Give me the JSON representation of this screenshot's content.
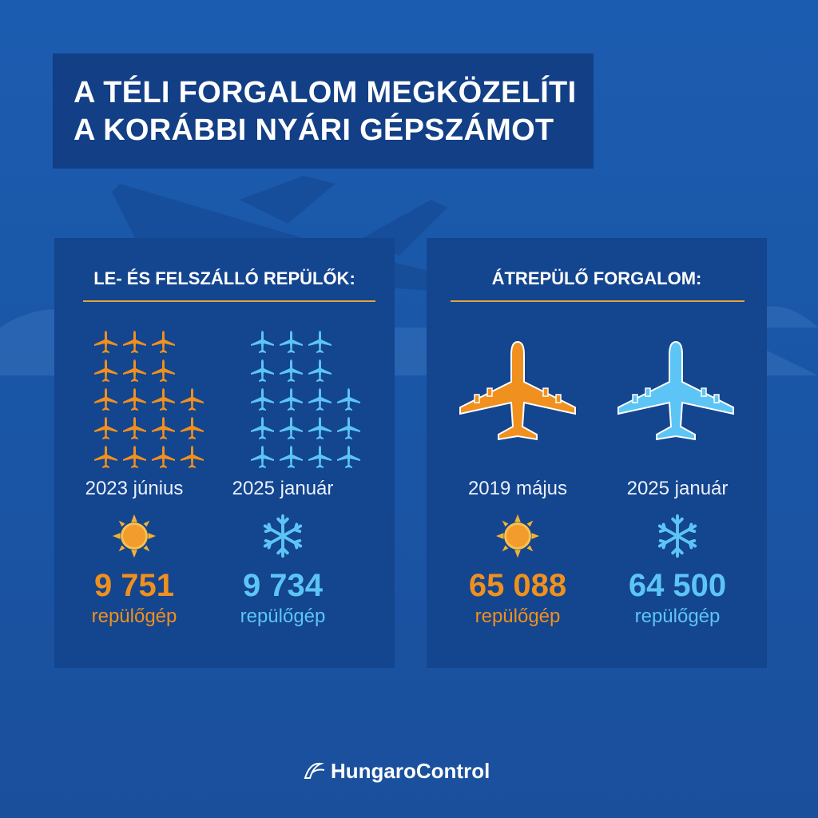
{
  "title": {
    "line1": "A TÉLI FORGALOM MEGKÖZELÍTI",
    "line2": "A KORÁBBI NYÁRI GÉPSZÁMOT"
  },
  "panels": {
    "left": {
      "title": "LE- ÉS FELSZÁLLÓ REPÜLŐK:",
      "columns": [
        {
          "date": "2023 június",
          "value": "9 751",
          "unit": "repülőgép",
          "season_icon": "sun-icon",
          "color": "#f0901e",
          "plane_icon_count": 18
        },
        {
          "date": "2025 január",
          "value": "9 734",
          "unit": "repülőgép",
          "season_icon": "snowflake-icon",
          "color": "#5cc5f5",
          "plane_icon_count": 18
        }
      ]
    },
    "right": {
      "title": "ÁTREPÜLŐ FORGALOM:",
      "columns": [
        {
          "date": "2019 május",
          "value": "65 088",
          "unit": "repülőgép",
          "season_icon": "sun-icon",
          "color": "#f0901e"
        },
        {
          "date": "2025 január",
          "value": "64 500",
          "unit": "repülőgép",
          "season_icon": "snowflake-icon",
          "color": "#5cc5f5"
        }
      ]
    }
  },
  "colors": {
    "background": "#1a57a8",
    "panel": "#14458f",
    "accent_orange": "#f0901e",
    "accent_blue": "#5cc5f5",
    "divider": "#e4a43a"
  },
  "logo": {
    "text": "HungaroControl",
    "icon": "hungarocontrol-logo-icon"
  }
}
